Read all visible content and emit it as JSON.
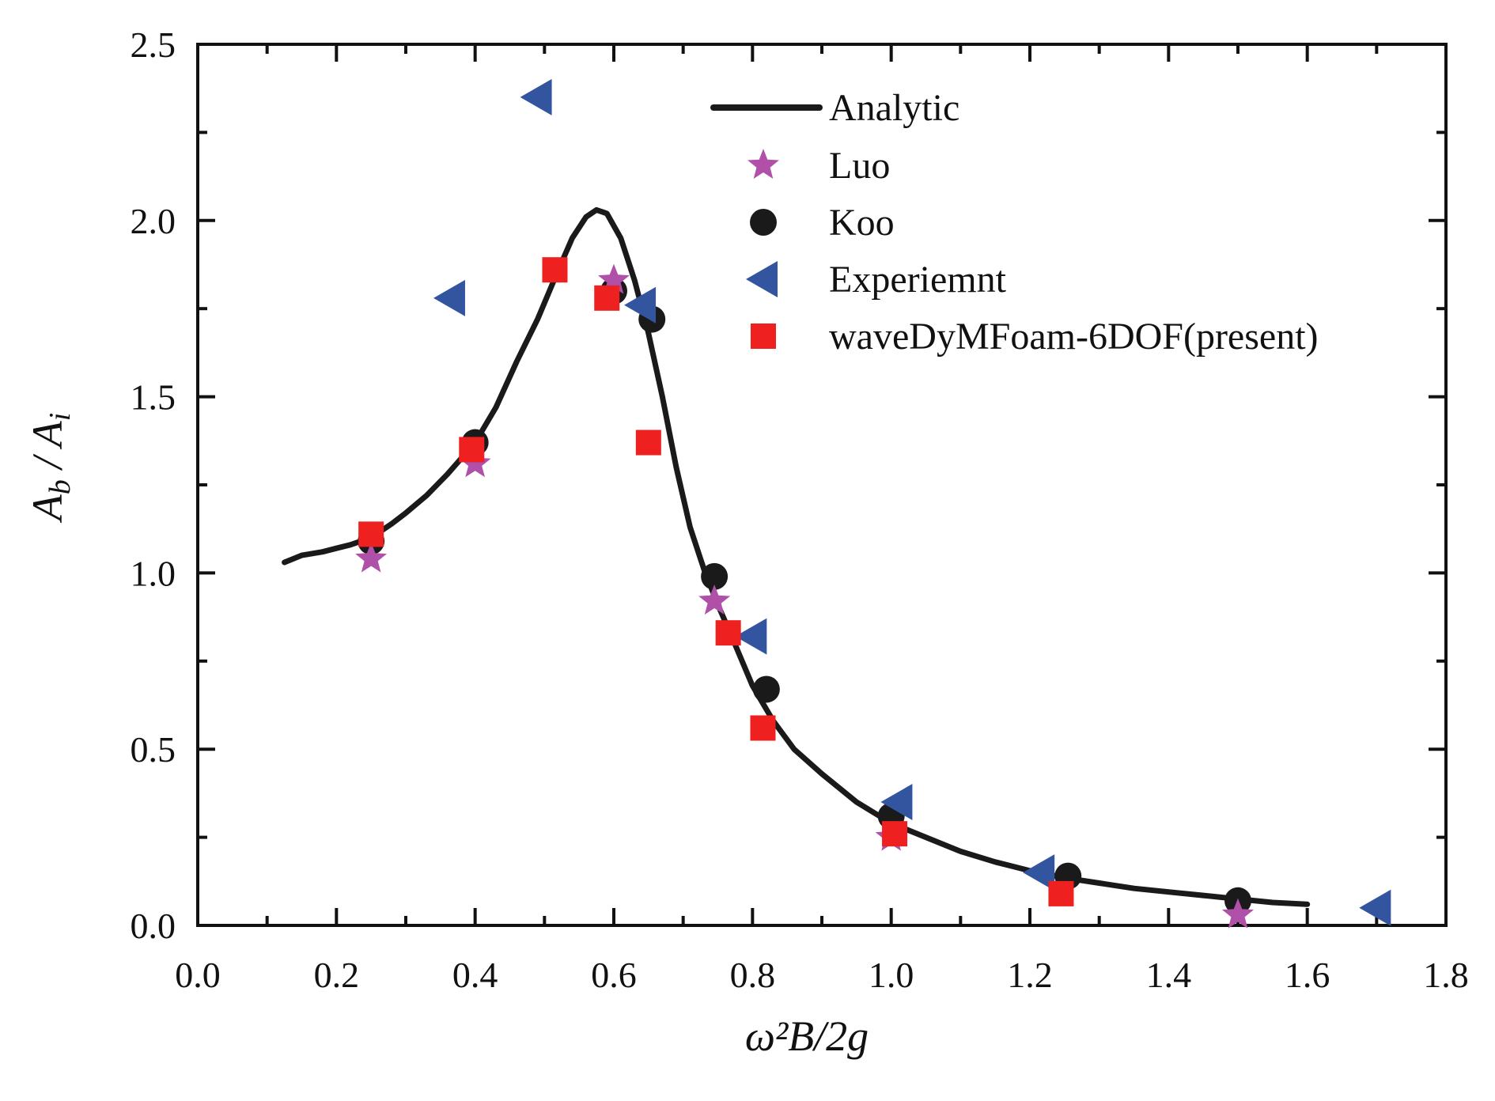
{
  "chart_data": {
    "type": "scatter",
    "title": "",
    "xlabel": "ω²B/2g",
    "ylabel": "A_b / A_i",
    "xlim": [
      0.0,
      1.8
    ],
    "ylim": [
      0.0,
      2.5
    ],
    "x_ticks": [
      "0.0",
      "0.2",
      "0.4",
      "0.6",
      "0.8",
      "1.0",
      "1.2",
      "1.4",
      "1.6",
      "1.8"
    ],
    "y_ticks": [
      "0.0",
      "0.5",
      "1.0",
      "1.5",
      "2.0",
      "2.5"
    ],
    "legend_position": "top-right",
    "series": [
      {
        "name": "Analytic",
        "marker": "line",
        "color": "#1a1a1a",
        "x": [
          0.125,
          0.15,
          0.18,
          0.2,
          0.22,
          0.25,
          0.28,
          0.3,
          0.33,
          0.36,
          0.4,
          0.43,
          0.46,
          0.49,
          0.52,
          0.54,
          0.56,
          0.575,
          0.59,
          0.61,
          0.63,
          0.65,
          0.67,
          0.69,
          0.71,
          0.73,
          0.75,
          0.77,
          0.8,
          0.83,
          0.86,
          0.9,
          0.95,
          1.0,
          1.05,
          1.1,
          1.15,
          1.2,
          1.25,
          1.3,
          1.35,
          1.4,
          1.45,
          1.5,
          1.55,
          1.6
        ],
        "y": [
          1.03,
          1.05,
          1.06,
          1.07,
          1.08,
          1.1,
          1.14,
          1.17,
          1.22,
          1.28,
          1.37,
          1.47,
          1.6,
          1.72,
          1.86,
          1.95,
          2.01,
          2.03,
          2.02,
          1.95,
          1.83,
          1.68,
          1.5,
          1.3,
          1.13,
          1.01,
          0.91,
          0.82,
          0.68,
          0.58,
          0.5,
          0.43,
          0.35,
          0.29,
          0.25,
          0.21,
          0.18,
          0.155,
          0.135,
          0.12,
          0.105,
          0.095,
          0.085,
          0.075,
          0.065,
          0.06
        ]
      },
      {
        "name": "Luo",
        "marker": "star",
        "color": "#b050a8",
        "x": [
          0.25,
          0.4,
          0.6,
          0.745,
          1.0,
          1.5
        ],
        "y": [
          1.04,
          1.31,
          1.83,
          0.92,
          0.25,
          0.03
        ]
      },
      {
        "name": "Koo",
        "marker": "circle",
        "color": "#1a1a1a",
        "x": [
          0.25,
          0.4,
          0.6,
          0.655,
          0.745,
          0.82,
          1.0,
          1.255,
          1.5
        ],
        "y": [
          1.09,
          1.37,
          1.8,
          1.72,
          0.99,
          0.67,
          0.31,
          0.14,
          0.07
        ]
      },
      {
        "name": "Experiemnt",
        "marker": "triangle-left",
        "color": "#3355a0",
        "x": [
          0.365,
          0.49,
          0.64,
          0.8,
          1.01,
          1.215,
          1.7
        ],
        "y": [
          1.78,
          2.35,
          1.76,
          0.82,
          0.35,
          0.15,
          0.05
        ]
      },
      {
        "name": "waveDyMFoam-6DOF(present)",
        "marker": "square",
        "color": "#ee2020",
        "x": [
          0.25,
          0.395,
          0.515,
          0.59,
          0.65,
          0.765,
          0.815,
          1.005,
          1.245
        ],
        "y": [
          1.11,
          1.35,
          1.86,
          1.78,
          1.37,
          0.83,
          0.56,
          0.26,
          0.09
        ]
      }
    ]
  }
}
